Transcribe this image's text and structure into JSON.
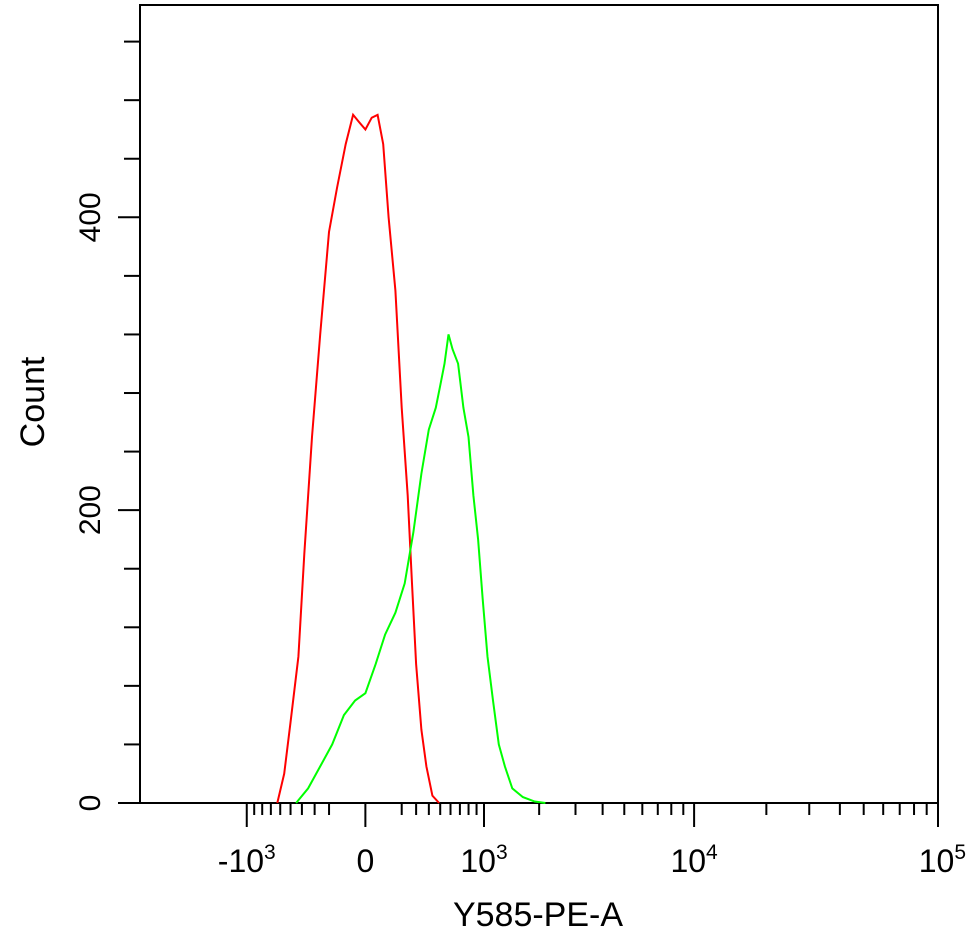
{
  "chart_data": {
    "type": "area",
    "xlabel": "Y585-PE-A",
    "ylabel": "Count",
    "x_scale": "biexponential",
    "ylim": [
      0,
      545
    ],
    "y_ticks": [
      {
        "value": 0,
        "label": "0"
      },
      {
        "value": 200,
        "label": "200"
      },
      {
        "value": 400,
        "label": "400"
      }
    ],
    "x_ticks": [
      {
        "value": -1000,
        "base": "-10",
        "exp": "3"
      },
      {
        "value": 0,
        "base": "0",
        "exp": ""
      },
      {
        "value": 1000,
        "base": "10",
        "exp": "3"
      },
      {
        "value": 10000,
        "base": "10",
        "exp": "4"
      },
      {
        "value": 100000,
        "base": "10",
        "exp": "5"
      }
    ],
    "grid": false,
    "series": [
      {
        "color": "#ff0000",
        "points": [
          [
            -630,
            0
          ],
          [
            -560,
            20
          ],
          [
            -500,
            55
          ],
          [
            -430,
            100
          ],
          [
            -380,
            170
          ],
          [
            -320,
            250
          ],
          [
            -260,
            320
          ],
          [
            -200,
            390
          ],
          [
            -150,
            420
          ],
          [
            -100,
            450
          ],
          [
            -60,
            470
          ],
          [
            -30,
            465
          ],
          [
            0,
            460
          ],
          [
            30,
            468
          ],
          [
            60,
            470
          ],
          [
            90,
            450
          ],
          [
            120,
            400
          ],
          [
            160,
            350
          ],
          [
            200,
            270
          ],
          [
            240,
            210
          ],
          [
            270,
            150
          ],
          [
            300,
            95
          ],
          [
            340,
            50
          ],
          [
            380,
            25
          ],
          [
            430,
            5
          ],
          [
            490,
            0
          ]
        ]
      },
      {
        "color": "#00ff00",
        "points": [
          [
            -450,
            0
          ],
          [
            -350,
            10
          ],
          [
            -260,
            25
          ],
          [
            -180,
            40
          ],
          [
            -110,
            60
          ],
          [
            -50,
            70
          ],
          [
            0,
            75
          ],
          [
            50,
            95
          ],
          [
            100,
            115
          ],
          [
            160,
            130
          ],
          [
            220,
            150
          ],
          [
            280,
            185
          ],
          [
            340,
            225
          ],
          [
            400,
            255
          ],
          [
            460,
            270
          ],
          [
            500,
            285
          ],
          [
            540,
            300
          ],
          [
            580,
            320
          ],
          [
            620,
            310
          ],
          [
            680,
            300
          ],
          [
            740,
            270
          ],
          [
            800,
            250
          ],
          [
            860,
            210
          ],
          [
            920,
            180
          ],
          [
            980,
            140
          ],
          [
            1050,
            100
          ],
          [
            1130,
            70
          ],
          [
            1220,
            40
          ],
          [
            1320,
            25
          ],
          [
            1450,
            10
          ],
          [
            1650,
            4
          ],
          [
            1900,
            1
          ],
          [
            2150,
            0
          ]
        ]
      }
    ]
  }
}
